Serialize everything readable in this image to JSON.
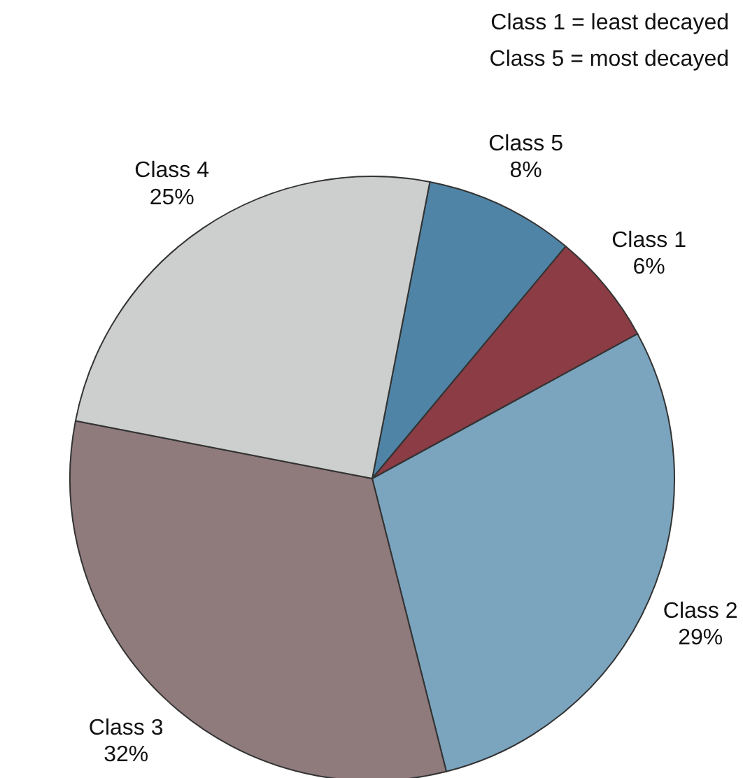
{
  "chart_data": {
    "type": "pie",
    "categories": [
      "Class 5",
      "Class 1",
      "Class 2",
      "Class 3",
      "Class 4"
    ],
    "values": [
      8,
      6,
      29,
      32,
      25
    ],
    "value_labels": [
      "8%",
      "6%",
      "29%",
      "32%",
      "25%"
    ],
    "colors": [
      "#4f84a6",
      "#8b3c45",
      "#7ba4be",
      "#8f7a7c",
      "#cccfcd"
    ],
    "annotations": [
      "Class 1 = least decayed",
      "Class 5 = most decayed"
    ],
    "legend": false
  }
}
